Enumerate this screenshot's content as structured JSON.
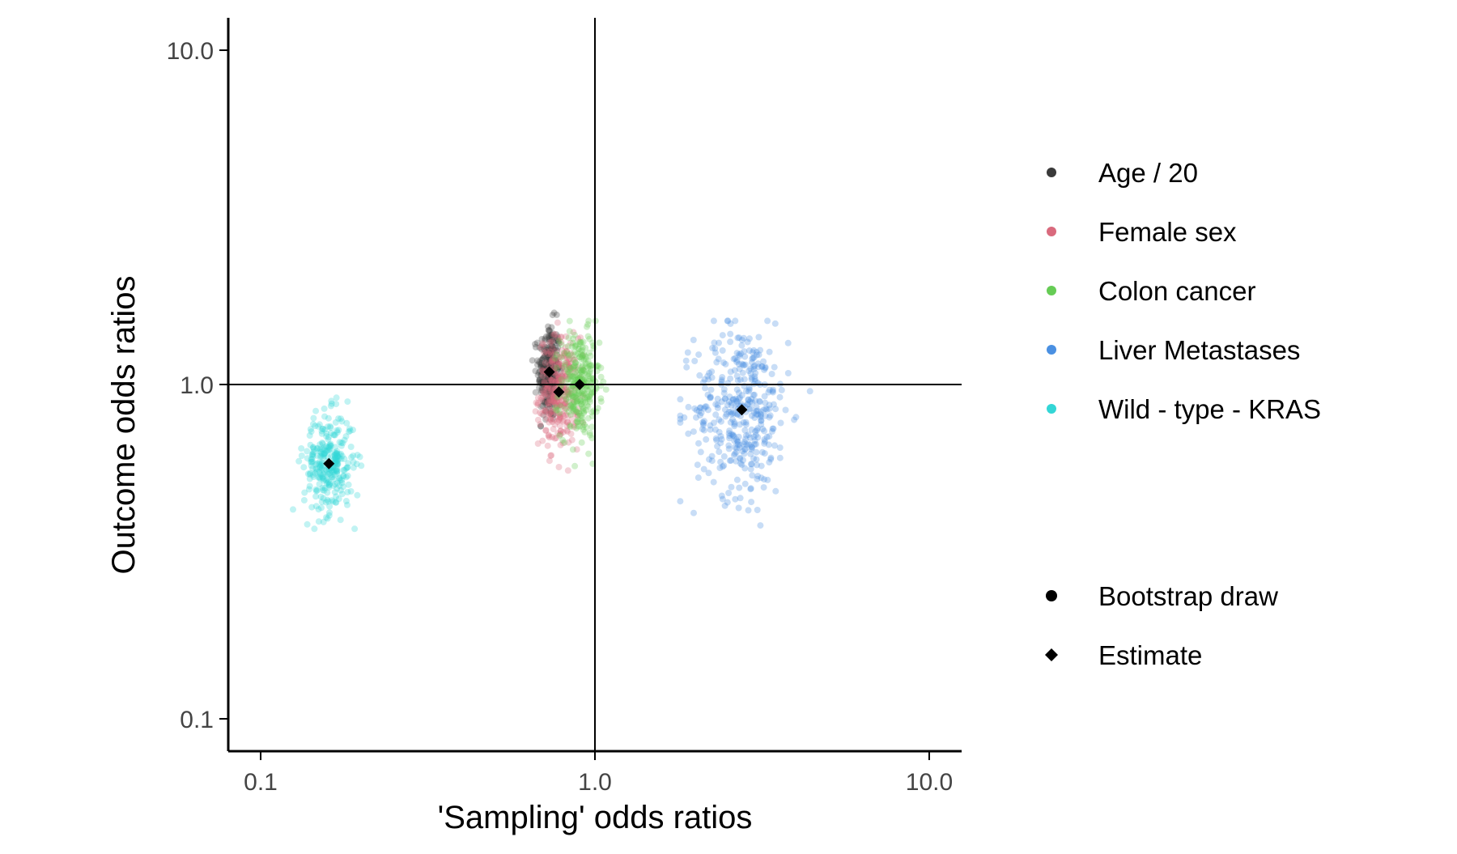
{
  "chart_data": {
    "type": "scatter",
    "xlabel": "'Sampling' odds ratios",
    "ylabel": "Outcome odds ratios",
    "xscale": "log",
    "yscale": "log",
    "xlim": [
      0.08,
      12.5
    ],
    "ylim": [
      0.08,
      12.5
    ],
    "xticks": [
      0.1,
      1.0,
      10.0
    ],
    "xtick_labels": [
      "0.1",
      "1.0",
      "10.0"
    ],
    "yticks": [
      0.1,
      1.0,
      10.0
    ],
    "ytick_labels": [
      "0.1",
      "1.0",
      "10.0"
    ],
    "reference_lines": {
      "x": 1.0,
      "y": 1.0
    },
    "grid": false,
    "legend_position": "right",
    "series": [
      {
        "name": "Age / 20",
        "color": "#3a3a3a",
        "estimate": {
          "x": 0.73,
          "y": 1.09
        },
        "draws": {
          "n": 300,
          "x_range": [
            0.65,
            0.8
          ],
          "y_range": [
            0.75,
            1.9
          ]
        }
      },
      {
        "name": "Female sex",
        "color": "#d96a7d",
        "estimate": {
          "x": 0.78,
          "y": 0.95
        },
        "draws": {
          "n": 300,
          "x_range": [
            0.63,
            0.92
          ],
          "y_range": [
            0.55,
            1.55
          ]
        }
      },
      {
        "name": "Colon cancer",
        "color": "#66cc55",
        "estimate": {
          "x": 0.9,
          "y": 1.0
        },
        "draws": {
          "n": 300,
          "x_range": [
            0.75,
            1.08
          ],
          "y_range": [
            0.57,
            1.55
          ]
        }
      },
      {
        "name": "Liver Metastases",
        "color": "#4a90e2",
        "estimate": {
          "x": 2.75,
          "y": 0.84
        },
        "draws": {
          "n": 400,
          "x_range": [
            1.8,
            4.4
          ],
          "y_range": [
            0.3,
            1.55
          ]
        }
      },
      {
        "name": "Wild - type - KRAS",
        "color": "#33d6d6",
        "estimate": {
          "x": 0.16,
          "y": 0.58
        },
        "draws": {
          "n": 300,
          "x_range": [
            0.125,
            0.2
          ],
          "y_range": [
            0.37,
            0.95
          ]
        }
      }
    ],
    "shape_legend": [
      {
        "label": "Bootstrap draw",
        "shape": "circle"
      },
      {
        "label": "Estimate",
        "shape": "diamond"
      }
    ]
  }
}
